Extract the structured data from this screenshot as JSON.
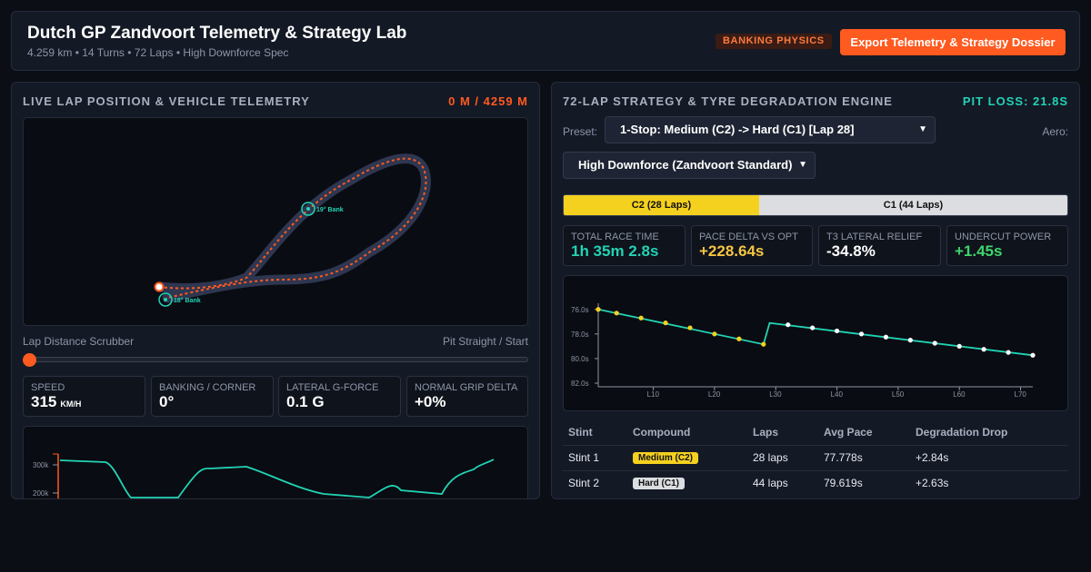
{
  "header": {
    "title": "Dutch GP Zandvoort Telemetry & Strategy Lab",
    "subtitle": "4.259 km • 14 Turns • 72 Laps • High Downforce Spec",
    "badge": "BANKING PHYSICS",
    "export_label": "Export Telemetry & Strategy Dossier"
  },
  "telemetry": {
    "title": "LIVE LAP POSITION & VEHICLE TELEMETRY",
    "position_readout": "0 M / 4259 M",
    "bank_markers": [
      "19° Bank",
      "18° Bank"
    ],
    "scrubber_label": "Lap Distance Scrubber",
    "scrubber_location": "Pit Straight / Start",
    "scrubber_value_m": 0,
    "metrics": [
      {
        "label": "SPEED",
        "value": "315",
        "unit": "KM/H"
      },
      {
        "label": "BANKING / CORNER",
        "value": "0°",
        "unit": ""
      },
      {
        "label": "LATERAL G-FORCE",
        "value": "0.1 G",
        "unit": ""
      },
      {
        "label": "NORMAL GRIP DELTA",
        "value": "+0%",
        "unit": ""
      }
    ],
    "speed_ticks": [
      "300k",
      "200k"
    ]
  },
  "strategy": {
    "title": "72-LAP STRATEGY & TYRE DEGRADATION ENGINE",
    "pit_loss": "PIT LOSS: 21.8S",
    "preset_label": "Preset:",
    "preset_value": "1-Stop: Medium (C2) -> Hard (C1) [Lap 28]",
    "aero_label": "Aero:",
    "aero_value": "High Downforce (Zandvoort Standard)",
    "stints_bar": [
      {
        "label": "C2 (28 Laps)",
        "laps": 28,
        "color": "#f5d11f"
      },
      {
        "label": "C1 (44 Laps)",
        "laps": 44,
        "color": "#dcdde0"
      }
    ],
    "kpis": [
      {
        "label": "TOTAL RACE TIME",
        "value": "1h 35m 2.8s",
        "color": "#22d3b4"
      },
      {
        "label": "PACE DELTA VS OPT",
        "value": "+228.64s",
        "color": "#f5c542"
      },
      {
        "label": "T3 LATERAL RELIEF",
        "value": "-34.8%",
        "color": "#ffffff"
      },
      {
        "label": "UNDERCUT POWER",
        "value": "+1.45s",
        "color": "#3fd46b"
      }
    ],
    "table": {
      "headers": [
        "Stint",
        "Compound",
        "Laps",
        "Avg Pace",
        "Degradation Drop"
      ],
      "rows": [
        {
          "stint": "Stint 1",
          "compound": "Medium (C2)",
          "compound_color": "#f5d11f",
          "laps": "28 laps",
          "avg_pace": "77.778s",
          "drop": "+2.84s"
        },
        {
          "stint": "Stint 2",
          "compound": "Hard (C1)",
          "compound_color": "#dcdde0",
          "laps": "44 laps",
          "avg_pace": "79.619s",
          "drop": "+2.63s"
        }
      ]
    }
  },
  "chart_data": {
    "type": "line",
    "y_ticks": [
      "76.0s",
      "78.0s",
      "80.0s",
      "82.0s"
    ],
    "x_ticks": [
      "L10",
      "L20",
      "L30",
      "L40",
      "L50",
      "L60",
      "L70"
    ],
    "ylim": [
      75.5,
      82.0
    ],
    "y_inverted": true,
    "xlim": [
      1,
      72
    ],
    "series": [
      {
        "color": "#22d3b4",
        "points": [
          [
            1,
            76.0
          ],
          [
            28,
            78.84
          ],
          [
            29,
            77.1
          ],
          [
            72,
            79.73
          ]
        ]
      }
    ],
    "markers": [
      {
        "color": "#f5d11f",
        "x": [
          1,
          4,
          8,
          12,
          16,
          20,
          24,
          28
        ],
        "y": [
          76.0,
          76.3,
          76.7,
          77.1,
          77.5,
          78.0,
          78.4,
          78.84
        ]
      },
      {
        "color": "#ffffff",
        "x": [
          32,
          36,
          40,
          44,
          48,
          52,
          56,
          60,
          64,
          68,
          72
        ],
        "y": [
          77.25,
          77.5,
          77.75,
          78.0,
          78.25,
          78.5,
          78.75,
          79.0,
          79.25,
          79.5,
          79.73
        ]
      }
    ]
  }
}
